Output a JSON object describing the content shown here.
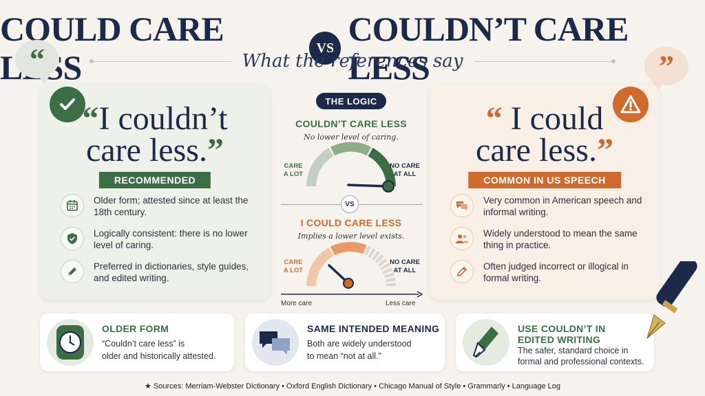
{
  "header": {
    "title_left": "COULD CARE LESS",
    "vs": "VS",
    "title_right": "COULDN’T CARE LESS",
    "subtitle": "What the references say"
  },
  "left_panel": {
    "open_quote": "“",
    "quote_line1": "I couldn’t",
    "quote_line2": "care less.",
    "close_quote": "”",
    "ribbon": "RECOMMENDED",
    "items": [
      {
        "icon": "calendar-icon",
        "text": "Older form; attested since at least the 18th century."
      },
      {
        "icon": "shield-check-icon",
        "text": "Logically consistent: there is no lower level of caring."
      },
      {
        "icon": "pencil-icon",
        "text": "Preferred in dictionaries, style guides, and edited writing."
      }
    ]
  },
  "right_panel": {
    "open_quote": "“",
    "quote_line1": "I could",
    "quote_line2": "care less.",
    "close_quote": "”",
    "ribbon": "COMMON IN US SPEECH",
    "items": [
      {
        "icon": "chat-icon",
        "text": "Very common in American speech and informal writing."
      },
      {
        "icon": "people-icon",
        "text": "Widely understood to mean the same thing in practice."
      },
      {
        "icon": "pencil-icon",
        "text": "Often judged incorrect or illogical in formal writing."
      }
    ]
  },
  "logic": {
    "pill": "THE LOGIC",
    "top_heading": "COULDN’T CARE LESS",
    "top_sub": "No lower level of caring.",
    "gauge_left_label": "CARE\nA LOT",
    "gauge_right_label": "NO CARE\nAT ALL",
    "vs": "VS",
    "bottom_heading": "I COULD CARE LESS",
    "bottom_sub": "Implies a lower level exists.",
    "axis_left": "More care",
    "axis_right": "Less care"
  },
  "cards": [
    {
      "title": "OLDER FORM",
      "body_line1": "“Couldn’t care less” is",
      "body_line2": "older and historically attested.",
      "icon": "clock-icon"
    },
    {
      "title": "SAME INTENDED MEANING",
      "body_line1": "Both are widely understood",
      "body_line2": "to mean “not at all.”",
      "icon": "speech-bubbles-icon"
    },
    {
      "title_line1": "USE COULDN’T IN",
      "title_line2": "EDITED WRITING",
      "body_line1": "The safer, standard choice in",
      "body_line2": "formal and professional contexts.",
      "icon": "fountain-pen-icon"
    }
  ],
  "sources": "Sources: Merriam-Webster Dictionary • Oxford English Dictionary • Chicago Manual of Style • Grammarly • Language Log",
  "colors": {
    "navy": "#1c2a4a",
    "green": "#3c6e46",
    "orange": "#d16a2d",
    "background": "#f6f3ee"
  }
}
